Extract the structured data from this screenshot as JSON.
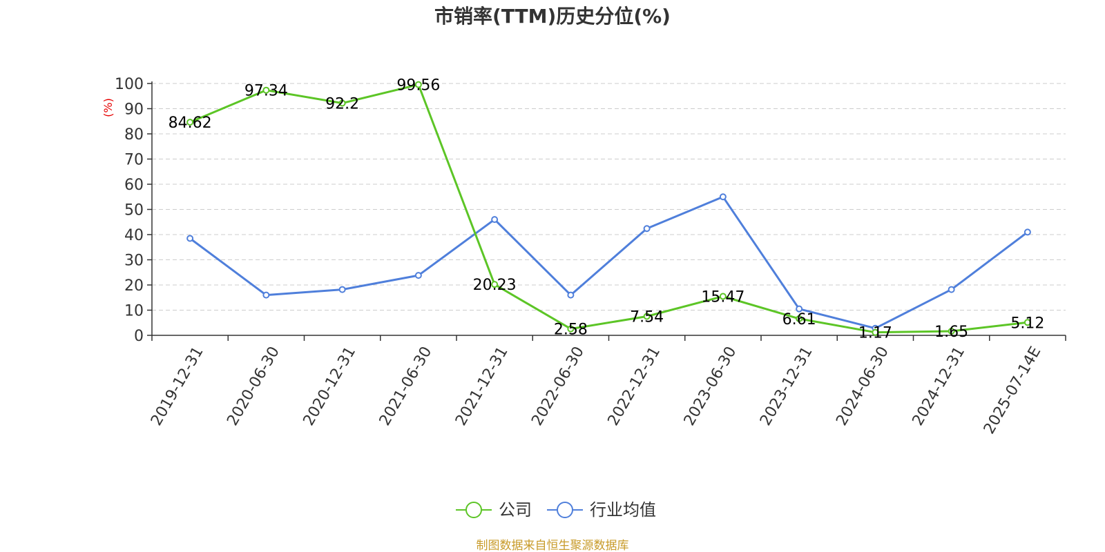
{
  "chart_data": {
    "type": "line",
    "title": "市销率(TTM)历史分位(%)",
    "ylabel": "(%)",
    "xlabel": "",
    "ylim": [
      0,
      100
    ],
    "yticks": [
      0,
      10,
      20,
      30,
      40,
      50,
      60,
      70,
      80,
      90,
      100
    ],
    "grid": "horizontal dashed",
    "legend_position": "bottom-center",
    "categories": [
      "2019-12-31",
      "2020-06-30",
      "2020-12-31",
      "2021-06-30",
      "2021-12-31",
      "2022-06-30",
      "2022-12-31",
      "2023-06-30",
      "2023-12-31",
      "2024-06-30",
      "2024-12-31",
      "2025-07-14E"
    ],
    "series": [
      {
        "name": "公司",
        "color": "#5cc526",
        "values": [
          84.62,
          97.34,
          92.2,
          99.56,
          20.23,
          2.58,
          7.54,
          15.47,
          6.61,
          1.17,
          1.65,
          5.12
        ],
        "labels": [
          "84.62",
          "97.34",
          "92.2",
          "99.56",
          "20.23",
          "2.58",
          "7.54",
          "15.47",
          "6.61",
          "1.17",
          "1.65",
          "5.12"
        ]
      },
      {
        "name": "行业均值",
        "color": "#4f7fdb",
        "values": [
          38.5,
          16.0,
          18.2,
          23.8,
          46.0,
          16.0,
          42.4,
          55.0,
          10.5,
          2.8,
          18.2,
          41.0
        ]
      }
    ]
  },
  "source_text": "制图数据来自恒生聚源数据库",
  "colors": {
    "axis": "#333333",
    "grid": "#cccccc",
    "ylabel": "#e60000",
    "source": "#c89b2a"
  }
}
